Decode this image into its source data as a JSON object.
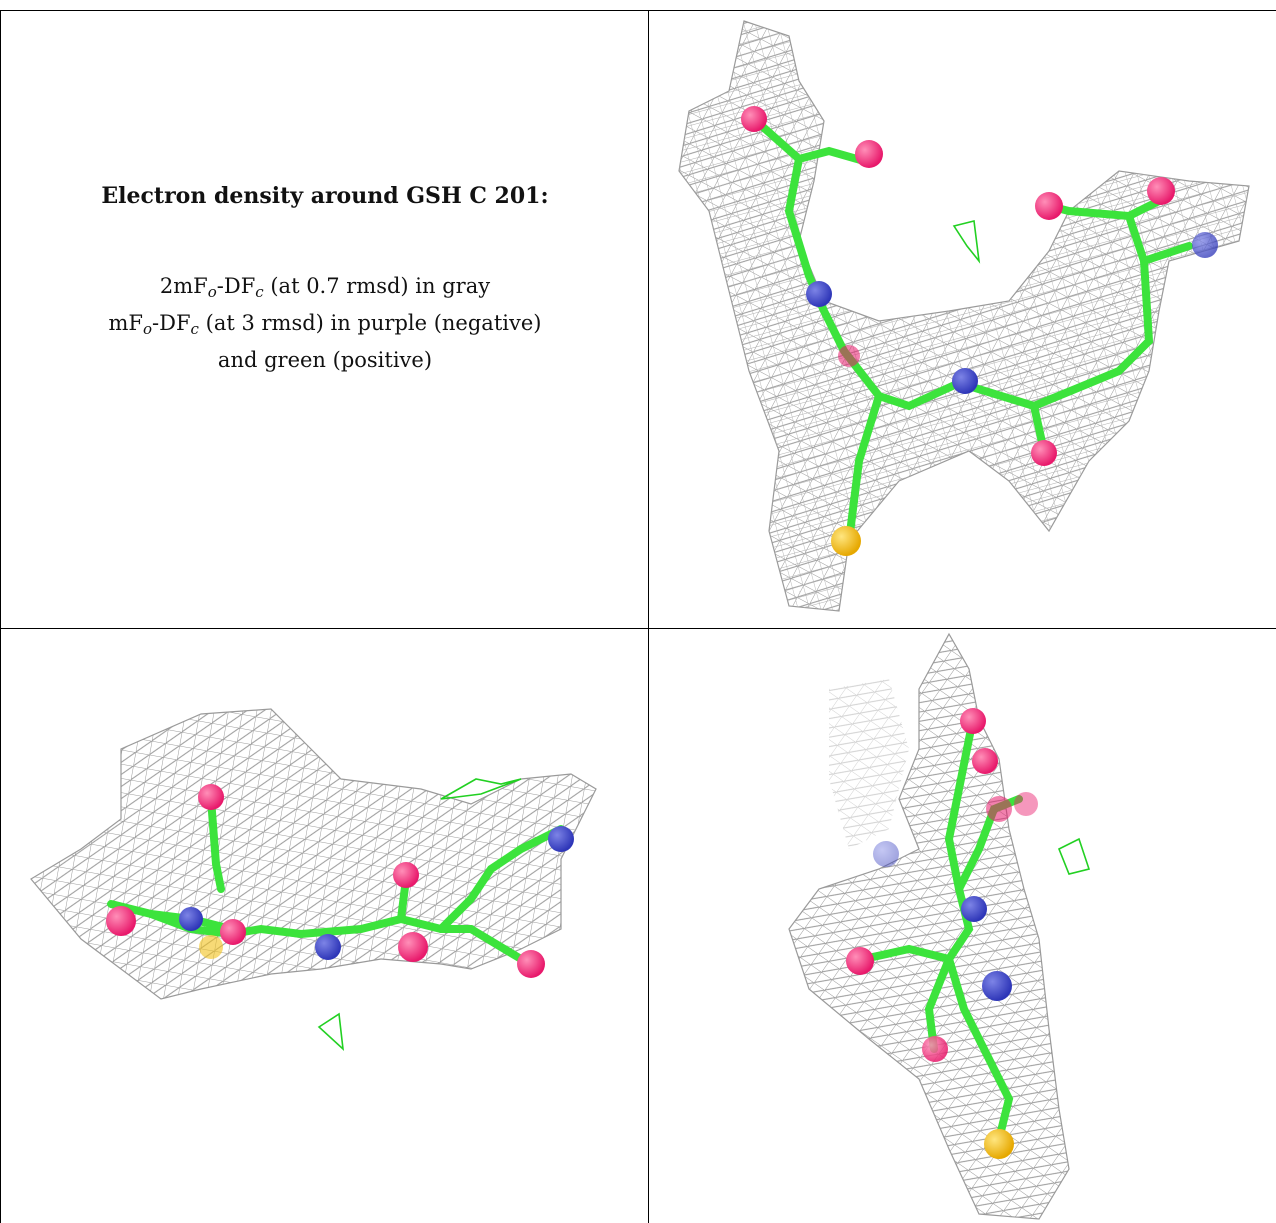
{
  "caption": {
    "title": "Electron density around GSH C 201:",
    "line1": {
      "prefix": "2mF",
      "sub1": "o",
      "mid": "-DF",
      "sub2": "c",
      "suffix": " (at 0.7 rmsd) in gray"
    },
    "line2": {
      "prefix": "mF",
      "sub1": "o",
      "mid": "-DF",
      "sub2": "c",
      "suffix": " (at 3 rmsd) in purple (negative)"
    },
    "line3": "and green (positive)"
  },
  "colors": {
    "mesh": "#9a9a9a",
    "carbon": "#3ce33c",
    "oxygen": "#e8196b",
    "nitrogen": "#2e36b8",
    "sulfur": "#f2c21a",
    "positive_density": "#22d022"
  },
  "panels": [
    {
      "name": "view-1",
      "icon": "molecule-density-view"
    },
    {
      "name": "view-2",
      "icon": "molecule-density-view"
    },
    {
      "name": "view-3",
      "icon": "molecule-density-view"
    }
  ]
}
